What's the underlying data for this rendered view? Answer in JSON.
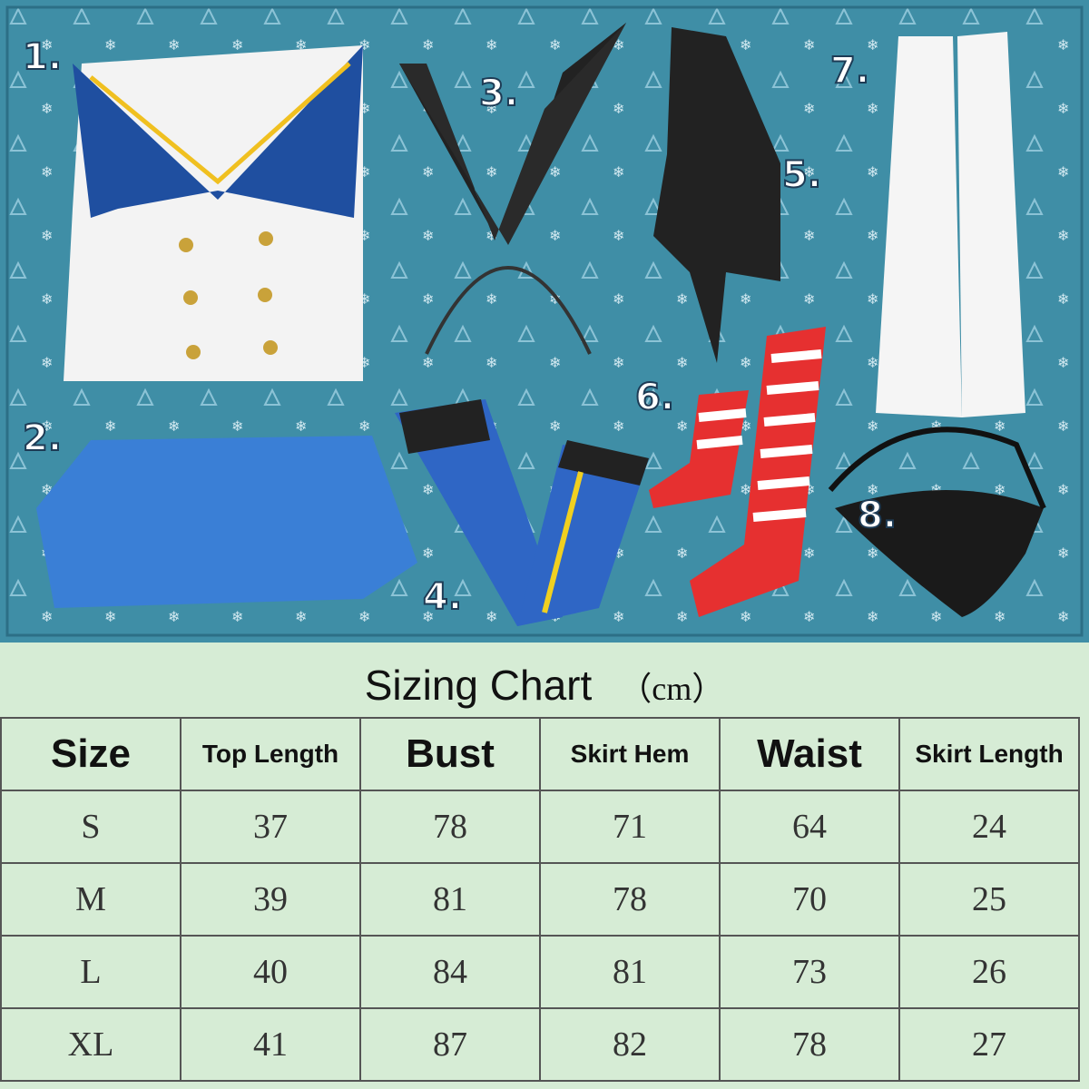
{
  "items": [
    {
      "number": "1.",
      "name": "Sailor top"
    },
    {
      "number": "2.",
      "name": "Skirt"
    },
    {
      "number": "3.",
      "name": "Bunny ear headband"
    },
    {
      "number": "4.",
      "name": "Blue stockings"
    },
    {
      "number": "5.",
      "name": "Black scarf tie"
    },
    {
      "number": "6.",
      "name": "Striped socks"
    },
    {
      "number": "7.",
      "name": "White gloves"
    },
    {
      "number": "8.",
      "name": "Underwear"
    }
  ],
  "colors": {
    "background": "#3f8ea6",
    "chart_bg": "#d6ecd5",
    "collar": "#1f4fa0",
    "skirt": "#3a7fd6"
  },
  "chart": {
    "title": "Sizing Chart",
    "unit": "（cm）",
    "headers": [
      "Size",
      "Top Length",
      "Bust",
      "Skirt Hem",
      "Waist",
      "Skirt Length"
    ],
    "rows": [
      [
        "S",
        "37",
        "78",
        "71",
        "64",
        "24"
      ],
      [
        "M",
        "39",
        "81",
        "78",
        "70",
        "25"
      ],
      [
        "L",
        "40",
        "84",
        "81",
        "73",
        "26"
      ],
      [
        "XL",
        "41",
        "87",
        "82",
        "78",
        "27"
      ]
    ]
  }
}
